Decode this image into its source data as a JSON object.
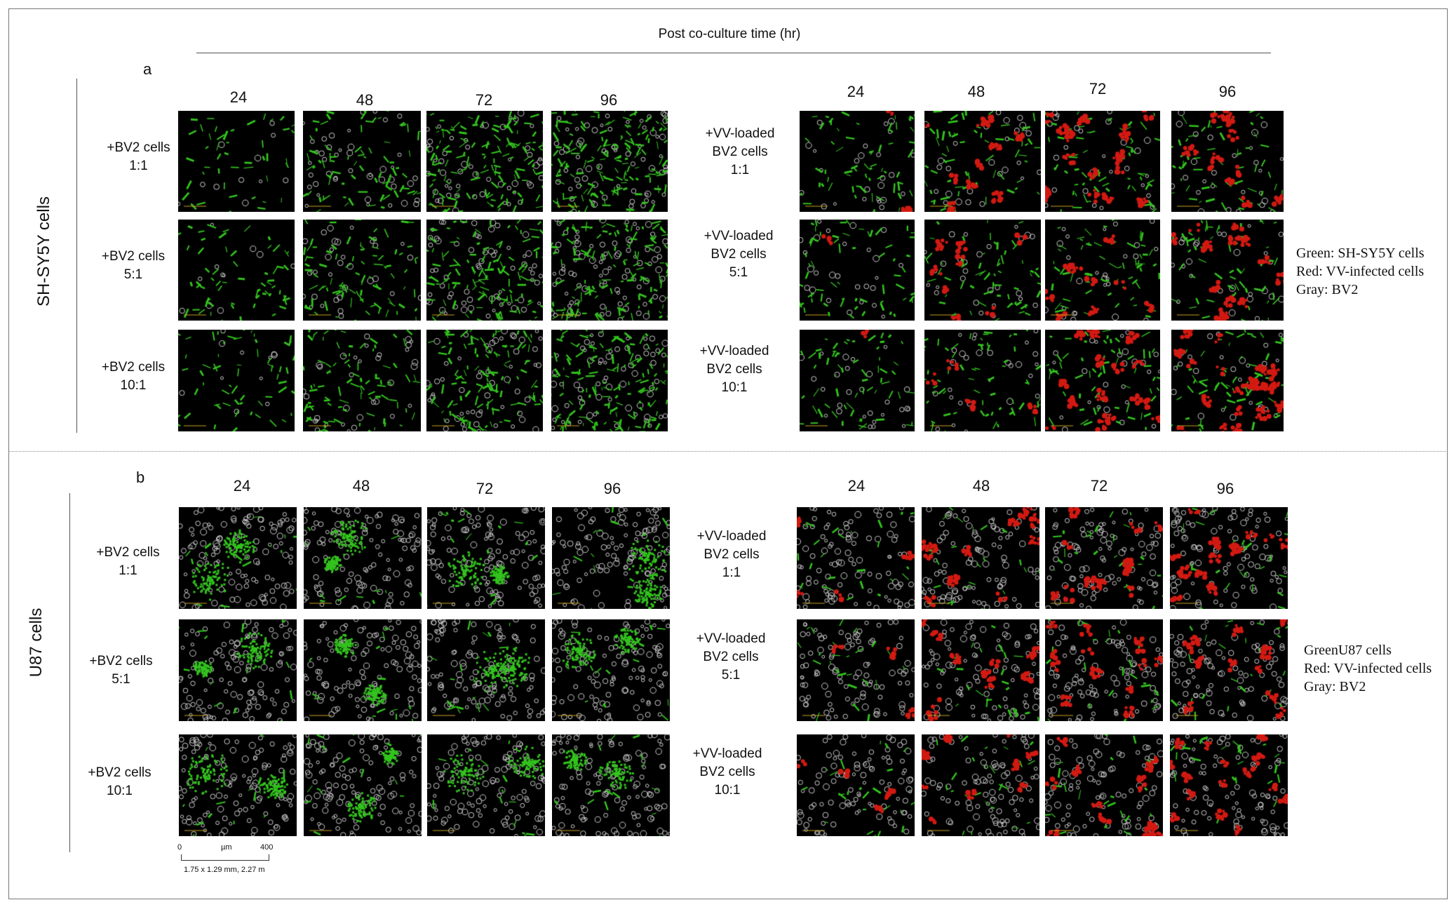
{
  "header": {
    "title": "Post co-culture time (hr)"
  },
  "times": [
    "24",
    "48",
    "72",
    "96"
  ],
  "colors": {
    "green": "#33c41e",
    "red": "#d21a12",
    "gray": "#cfcfcf",
    "background": "#000000"
  },
  "panel_a": {
    "letter": "a",
    "cell_line_label": "SH-SY5Y cells",
    "left_rows": [
      "+BV2 cells\n1:1",
      "+BV2 cells\n5:1",
      "+BV2 cells\n10:1"
    ],
    "right_rows": [
      "+VV-loaded\nBV2 cells\n1:1",
      "+VV-loaded\nBV2 cells\n5:1",
      "+VV-loaded\nBV2 cells\n10:1"
    ],
    "legend": "Green: SH-SY5Y cells\nRed: VV-infected cells\nGray: BV2"
  },
  "panel_b": {
    "letter": "b",
    "cell_line_label": "U87 cells",
    "left_rows": [
      "+BV2 cells\n1:1",
      "+BV2 cells\n5:1",
      "+BV2 cells\n10:1"
    ],
    "right_rows": [
      "+VV-loaded\nBV2 cells\n1:1",
      "+VV-loaded\nBV2 cells\n5:1",
      "+VV-loaded\nBV2 cells\n10:1"
    ],
    "legend": "GreenU87 cells\nRed: VV-infected cells\nGray: BV2"
  },
  "scale_bar": {
    "start": "0",
    "unit": "µm",
    "end": "400",
    "caption": "1.75 x 1.29 mm, 2.27 m"
  }
}
